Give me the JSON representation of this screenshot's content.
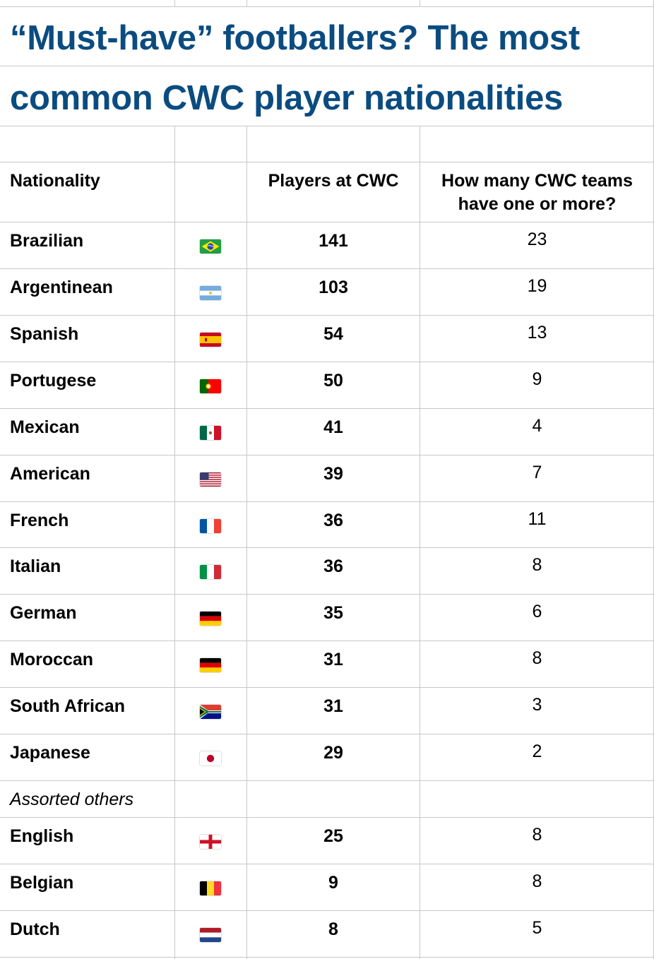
{
  "title": {
    "line1": "“Must-have” footballers? The most",
    "line2": "common CWC player nationalities"
  },
  "colors": {
    "title": "#0b4c80",
    "grid": "#c8c8c8"
  },
  "table": {
    "headers": {
      "nationality": "Nationality",
      "players": "Players at CWC",
      "teams_line1": "How many CWC teams",
      "teams_line2": "have one or more?"
    },
    "rows": [
      {
        "nationality": "Brazilian",
        "flag": "brazil-flag-icon",
        "players": "141",
        "teams": "23"
      },
      {
        "nationality": "Argentinean",
        "flag": "argentina-flag-icon",
        "players": "103",
        "teams": "19"
      },
      {
        "nationality": "Spanish",
        "flag": "spain-flag-icon",
        "players": "54",
        "teams": "13"
      },
      {
        "nationality": "Portugese",
        "flag": "portugal-flag-icon",
        "players": "50",
        "teams": "9"
      },
      {
        "nationality": "Mexican",
        "flag": "mexico-flag-icon",
        "players": "41",
        "teams": "4"
      },
      {
        "nationality": "American",
        "flag": "usa-flag-icon",
        "players": "39",
        "teams": "7"
      },
      {
        "nationality": "French",
        "flag": "france-flag-icon",
        "players": "36",
        "teams": "11"
      },
      {
        "nationality": "Italian",
        "flag": "italy-flag-icon",
        "players": "36",
        "teams": "8"
      },
      {
        "nationality": "German",
        "flag": "germany-flag-icon",
        "players": "35",
        "teams": "6"
      },
      {
        "nationality": "Moroccan",
        "flag": "germany-flag-icon",
        "players": "31",
        "teams": "8"
      },
      {
        "nationality": "South African",
        "flag": "south-africa-flag-icon",
        "players": "31",
        "teams": "3"
      },
      {
        "nationality": "Japanese",
        "flag": "japan-flag-icon",
        "players": "29",
        "teams": "2"
      }
    ],
    "others_label": "Assorted others",
    "other_rows": [
      {
        "nationality": "English",
        "flag": "england-flag-icon",
        "players": "25",
        "teams": "8"
      },
      {
        "nationality": "Belgian",
        "flag": "belgium-flag-icon",
        "players": "9",
        "teams": "8"
      },
      {
        "nationality": "Dutch",
        "flag": "netherlands-flag-icon",
        "players": "8",
        "teams": "5"
      }
    ]
  }
}
